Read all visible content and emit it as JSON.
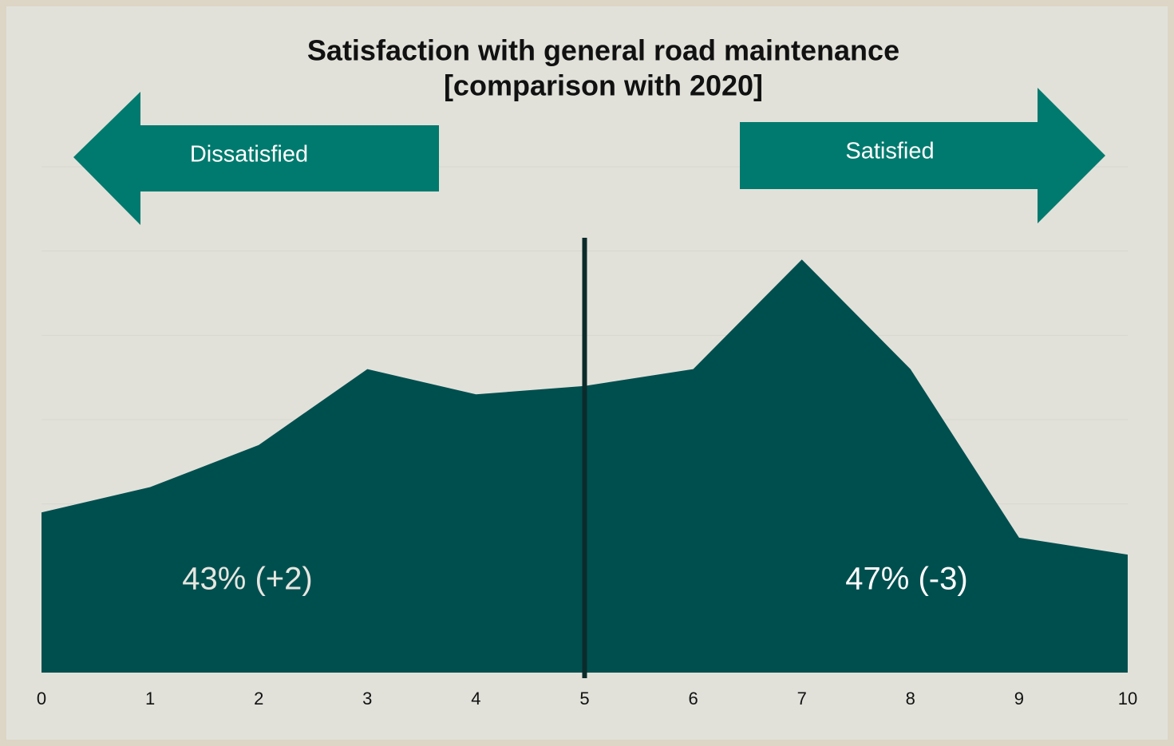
{
  "chart_data": {
    "type": "area",
    "title_lines": [
      "Satisfaction with general road maintenance",
      "[comparison with 2020]"
    ],
    "x": [
      0,
      1,
      2,
      3,
      4,
      5,
      6,
      7,
      8,
      9,
      10
    ],
    "values": [
      1.9,
      2.2,
      2.7,
      3.6,
      3.3,
      3.4,
      3.6,
      4.9,
      3.6,
      1.6,
      1.4
    ],
    "color": "#004f4f",
    "xlim": [
      0,
      10
    ],
    "xticks": [
      0,
      1,
      2,
      3,
      4,
      5,
      6,
      7,
      8,
      9,
      10
    ],
    "ylim": [
      0,
      6
    ],
    "gridlines": [
      2,
      3,
      4,
      5,
      6
    ],
    "divider": 5,
    "arrow_color": "#007a6e",
    "arrows": [
      "Dissatisfied",
      "Satisfied"
    ],
    "annotations": [
      "43% (+2)",
      "47% (-3)"
    ]
  }
}
